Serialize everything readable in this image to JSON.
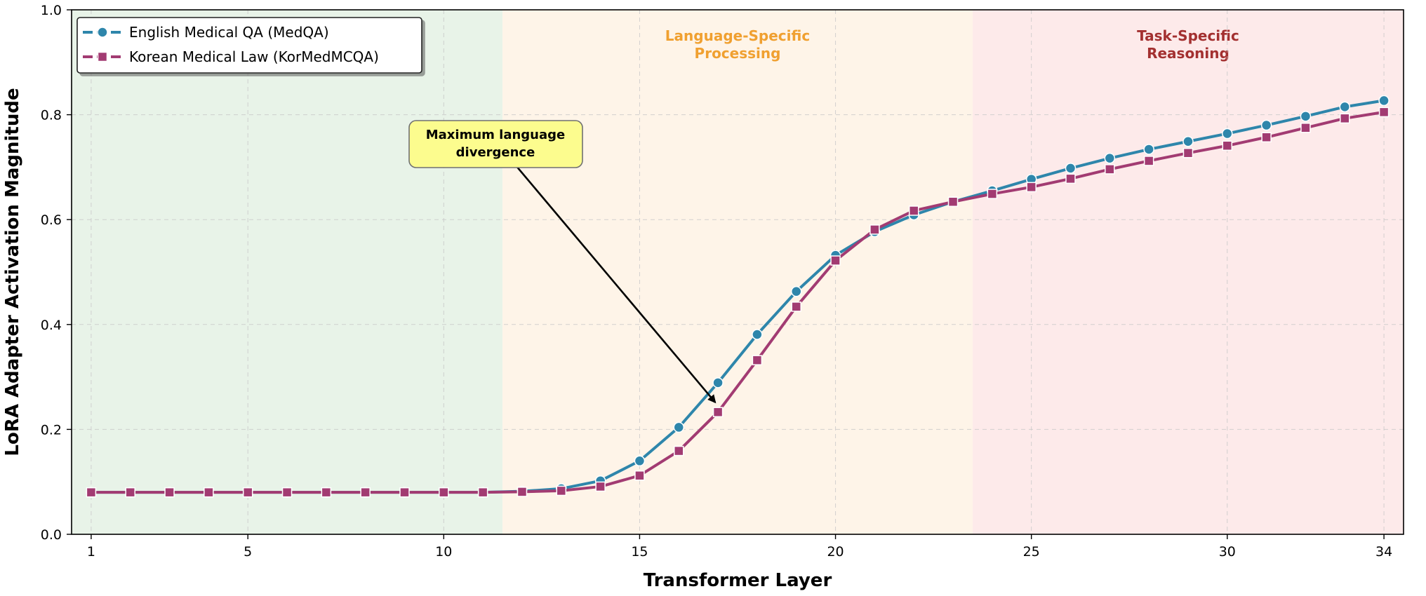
{
  "chart_data": {
    "type": "line",
    "xlabel": "Transformer Layer",
    "ylabel": "LoRA Adapter Activation Magnitude",
    "xlim": [
      0.5,
      34.5
    ],
    "ylim": [
      0.0,
      1.0
    ],
    "xticks": [
      1,
      5,
      10,
      15,
      20,
      25,
      30,
      34
    ],
    "yticks": [
      0.0,
      0.2,
      0.4,
      0.6,
      0.8,
      1.0
    ],
    "grid": true,
    "legend_position": "top-left",
    "x": [
      1,
      2,
      3,
      4,
      5,
      6,
      7,
      8,
      9,
      10,
      11,
      12,
      13,
      14,
      15,
      16,
      17,
      18,
      19,
      20,
      21,
      22,
      23,
      24,
      25,
      26,
      27,
      28,
      29,
      30,
      31,
      32,
      33,
      34
    ],
    "series": [
      {
        "name": "English Medical QA (MedQA)",
        "color": "#2e86ab",
        "marker": "circle",
        "values": [
          0.08,
          0.08,
          0.08,
          0.08,
          0.08,
          0.08,
          0.08,
          0.08,
          0.08,
          0.08,
          0.08,
          0.082,
          0.087,
          0.102,
          0.14,
          0.204,
          0.289,
          0.381,
          0.463,
          0.532,
          0.577,
          0.609,
          0.634,
          0.655,
          0.677,
          0.698,
          0.717,
          0.734,
          0.749,
          0.764,
          0.78,
          0.797,
          0.815,
          0.827
        ]
      },
      {
        "name": "Korean Medical Law (KorMedMCQA)",
        "color": "#a23b72",
        "marker": "square",
        "values": [
          0.08,
          0.08,
          0.08,
          0.08,
          0.08,
          0.08,
          0.08,
          0.08,
          0.08,
          0.08,
          0.08,
          0.081,
          0.083,
          0.091,
          0.112,
          0.159,
          0.233,
          0.332,
          0.434,
          0.522,
          0.581,
          0.617,
          0.634,
          0.649,
          0.662,
          0.678,
          0.696,
          0.712,
          0.727,
          0.741,
          0.757,
          0.775,
          0.793,
          0.805
        ]
      }
    ],
    "regions": [
      {
        "x_start": 0.5,
        "x_end": 11.5,
        "color": "#e8f3e8",
        "label_lines": [],
        "label_color": "#000000"
      },
      {
        "x_start": 11.5,
        "x_end": 23.5,
        "color": "#fef4e8",
        "label_lines": [
          "Language-Specific",
          "Processing"
        ],
        "label_color": "#f0a030"
      },
      {
        "x_start": 23.5,
        "x_end": 34.5,
        "color": "#fdeaea",
        "label_lines": [
          "Task-Specific",
          "Reasoning"
        ],
        "label_color": "#a33030"
      }
    ],
    "annotation": {
      "text_lines": [
        "Maximum language",
        "divergence"
      ],
      "box_color": "#fcfc8e",
      "arrow_target_x": 17,
      "arrow_target_y": 0.233
    }
  }
}
